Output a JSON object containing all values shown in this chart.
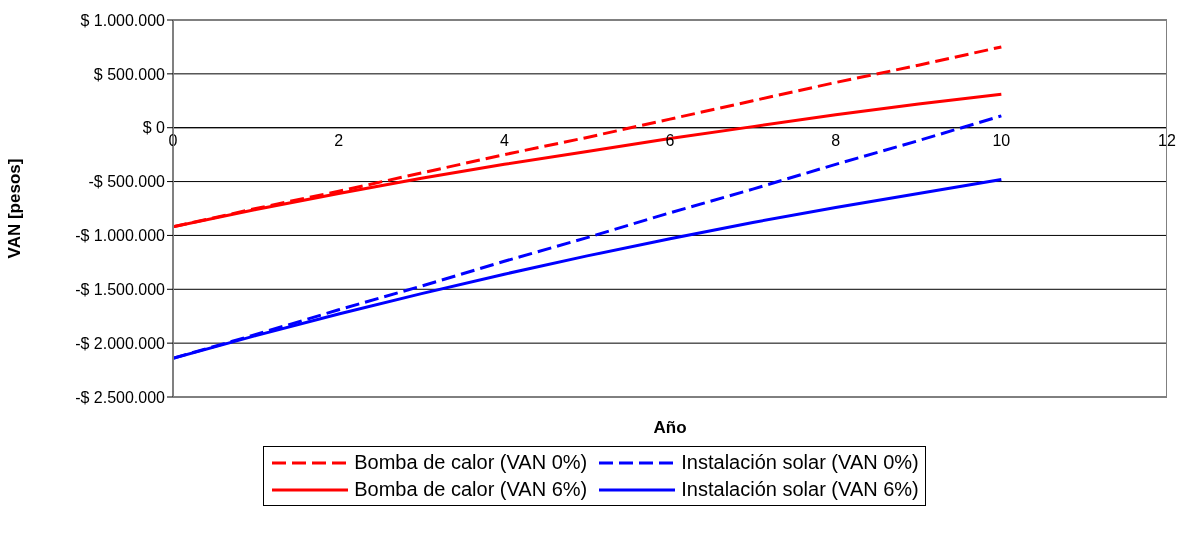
{
  "chart_data": {
    "type": "line",
    "xlabel": "Año",
    "ylabel": "VAN [pesos]",
    "x": [
      0,
      1,
      2,
      3,
      4,
      5,
      6,
      7,
      8,
      9,
      10
    ],
    "series": [
      {
        "name": "Bomba de calor (VAN 0%)",
        "color": "#ff0000",
        "line_style": "dashed",
        "values": [
          -920000,
          -750000,
          -590000,
          -420000,
          -250000,
          -90000,
          80000,
          250000,
          420000,
          580000,
          750000
        ]
      },
      {
        "name": "Instalación solar (VAN 0%)",
        "color": "#0000ff",
        "line_style": "dashed",
        "values": [
          -2140000,
          -1920000,
          -1690000,
          -1470000,
          -1240000,
          -1020000,
          -790000,
          -570000,
          -340000,
          -120000,
          110000
        ]
      },
      {
        "name": "Bomba de calor (VAN 6%)",
        "color": "#ff0000",
        "line_style": "solid",
        "values": [
          -920000,
          -760000,
          -610000,
          -470000,
          -340000,
          -220000,
          -100000,
          10000,
          120000,
          220000,
          310000
        ]
      },
      {
        "name": "Instalación solar (VAN 6%)",
        "color": "#0000ff",
        "line_style": "solid",
        "values": [
          -2140000,
          -1930000,
          -1730000,
          -1540000,
          -1360000,
          -1190000,
          -1030000,
          -880000,
          -740000,
          -610000,
          -480000
        ]
      }
    ],
    "xlim": [
      0,
      12
    ],
    "xticks": [
      0,
      2,
      4,
      6,
      8,
      10,
      12
    ],
    "ylim": [
      -2500000,
      1000000
    ],
    "yticks": [
      {
        "value": -2500000,
        "label": "-$ 2.500.000"
      },
      {
        "value": -2000000,
        "label": "-$ 2.000.000"
      },
      {
        "value": -1500000,
        "label": "-$ 1.500.000"
      },
      {
        "value": -1000000,
        "label": "-$ 1.000.000"
      },
      {
        "value": -500000,
        "label": "-$ 500.000"
      },
      {
        "value": 0,
        "label": "$ 0"
      },
      {
        "value": 500000,
        "label": "$ 500.000"
      },
      {
        "value": 1000000,
        "label": "$ 1.000.000"
      }
    ],
    "grid": "y",
    "legend": "bottom",
    "marker": "none"
  }
}
